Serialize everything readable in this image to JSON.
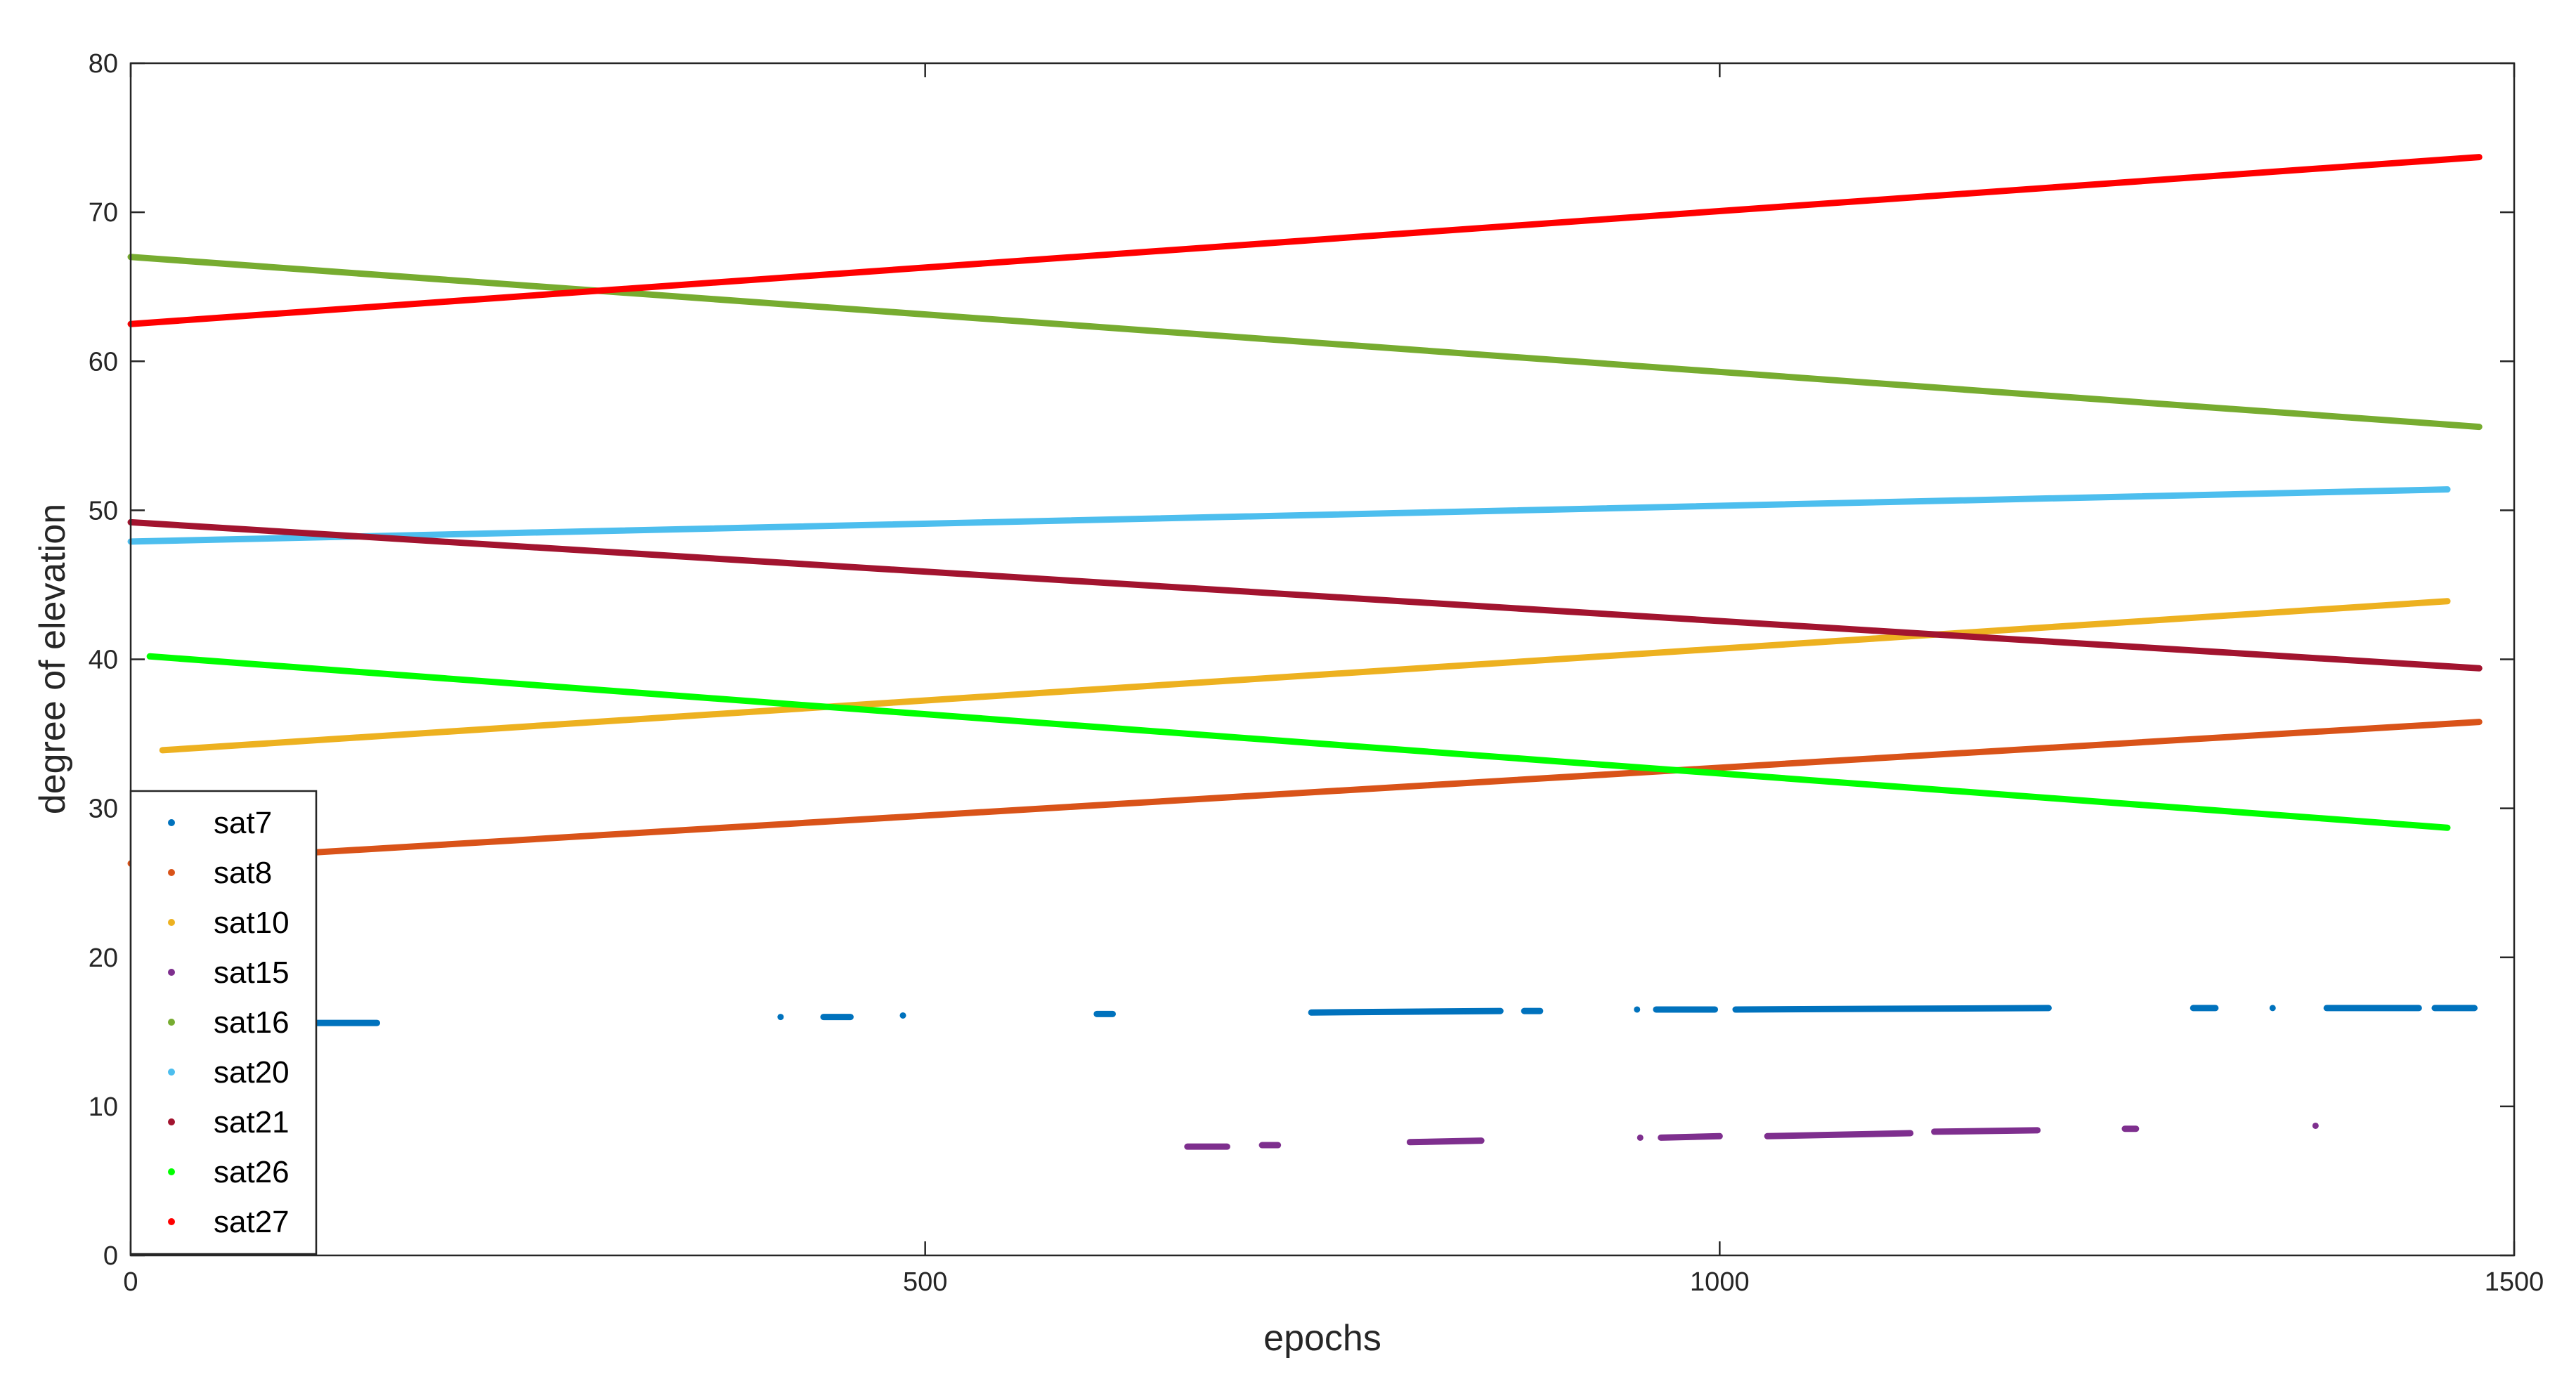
{
  "chart_data": {
    "type": "scatter",
    "xlabel": "epochs",
    "ylabel": "degree of elevation",
    "xlim": [
      0,
      1500
    ],
    "ylim": [
      0,
      80
    ],
    "xticks": [
      0,
      500,
      1000,
      1500
    ],
    "yticks": [
      0,
      10,
      20,
      30,
      40,
      50,
      60,
      70,
      80
    ],
    "legend_position": "bottom-left",
    "grid": false,
    "series": [
      {
        "name": "sat7",
        "color": "#0072BD",
        "segments": [
          {
            "x": [
              100,
              155
            ],
            "y": [
              15.6,
              15.6
            ]
          },
          {
            "x": [
              409,
              409
            ],
            "y": [
              16.0,
              16.0
            ]
          },
          {
            "x": [
              436,
              453
            ],
            "y": [
              16.0,
              16.0
            ]
          },
          {
            "x": [
              486,
              486
            ],
            "y": [
              16.1,
              16.1
            ]
          },
          {
            "x": [
              608,
              618
            ],
            "y": [
              16.2,
              16.2
            ]
          },
          {
            "x": [
              743,
              862
            ],
            "y": [
              16.3,
              16.4
            ]
          },
          {
            "x": [
              877,
              887
            ],
            "y": [
              16.4,
              16.4
            ]
          },
          {
            "x": [
              948,
              948
            ],
            "y": [
              16.5,
              16.5
            ]
          },
          {
            "x": [
              960,
              997
            ],
            "y": [
              16.5,
              16.5
            ]
          },
          {
            "x": [
              1010,
              1207
            ],
            "y": [
              16.5,
              16.6
            ]
          },
          {
            "x": [
              1298,
              1312
            ],
            "y": [
              16.6,
              16.6
            ]
          },
          {
            "x": [
              1348,
              1348
            ],
            "y": [
              16.6,
              16.6
            ]
          },
          {
            "x": [
              1382,
              1440
            ],
            "y": [
              16.6,
              16.6
            ]
          },
          {
            "x": [
              1450,
              1475
            ],
            "y": [
              16.6,
              16.6
            ]
          }
        ]
      },
      {
        "name": "sat8",
        "color": "#D95319",
        "segments": [
          {
            "x": [
              0,
              1478
            ],
            "y": [
              26.3,
              35.8
            ]
          }
        ]
      },
      {
        "name": "sat10",
        "color": "#EDB120",
        "segments": [
          {
            "x": [
              20,
              1458
            ],
            "y": [
              33.9,
              43.9
            ]
          }
        ]
      },
      {
        "name": "sat15",
        "color": "#7E2F8E",
        "segments": [
          {
            "x": [
              665,
              690
            ],
            "y": [
              7.3,
              7.3
            ]
          },
          {
            "x": [
              712,
              722
            ],
            "y": [
              7.4,
              7.4
            ]
          },
          {
            "x": [
              805,
              850
            ],
            "y": [
              7.6,
              7.7
            ]
          },
          {
            "x": [
              950,
              950
            ],
            "y": [
              7.9,
              7.9
            ]
          },
          {
            "x": [
              963,
              1000
            ],
            "y": [
              7.9,
              8.0
            ]
          },
          {
            "x": [
              1030,
              1120
            ],
            "y": [
              8.0,
              8.2
            ]
          },
          {
            "x": [
              1135,
              1200
            ],
            "y": [
              8.3,
              8.4
            ]
          },
          {
            "x": [
              1255,
              1262
            ],
            "y": [
              8.5,
              8.5
            ]
          },
          {
            "x": [
              1375,
              1375
            ],
            "y": [
              8.7,
              8.7
            ]
          }
        ]
      },
      {
        "name": "sat16",
        "color": "#77AC30",
        "segments": [
          {
            "x": [
              0,
              1478
            ],
            "y": [
              67.0,
              55.6
            ]
          }
        ]
      },
      {
        "name": "sat20",
        "color": "#4DBEEE",
        "segments": [
          {
            "x": [
              0,
              1458
            ],
            "y": [
              47.9,
              51.4
            ]
          }
        ]
      },
      {
        "name": "sat21",
        "color": "#A2142F",
        "segments": [
          {
            "x": [
              0,
              1478
            ],
            "y": [
              49.2,
              39.4
            ]
          }
        ]
      },
      {
        "name": "sat26",
        "color": "#00FF00",
        "segments": [
          {
            "x": [
              12,
              1458
            ],
            "y": [
              40.2,
              28.7
            ]
          }
        ]
      },
      {
        "name": "sat27",
        "color": "#FF0000",
        "segments": [
          {
            "x": [
              0,
              1478
            ],
            "y": [
              62.5,
              73.7
            ]
          }
        ]
      }
    ]
  }
}
